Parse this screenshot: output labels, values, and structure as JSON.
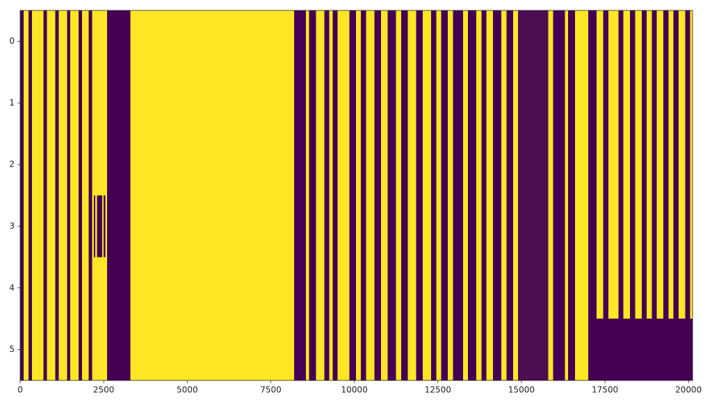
{
  "chart_data": {
    "type": "heatmap",
    "colors": [
      "#440154",
      "#fde725"
    ],
    "vlim": [
      0,
      1
    ],
    "bins": [
      0,
      100,
      250,
      350,
      700,
      800,
      1050,
      1150,
      1400,
      1500,
      1750,
      1850,
      2050,
      2150,
      2200,
      2250,
      2300,
      2450,
      2500,
      2550,
      2600,
      3300,
      8200,
      8550,
      8650,
      8850,
      9100,
      9250,
      9350,
      9500,
      9850,
      10050,
      10200,
      10350,
      10600,
      10800,
      11000,
      11250,
      11400,
      11600,
      11850,
      12050,
      12300,
      12450,
      12600,
      12800,
      12950,
      13250,
      13400,
      13650,
      13800,
      13950,
      14150,
      14400,
      14550,
      14750,
      14900,
      15800,
      15950,
      16300,
      16400,
      16600,
      17000,
      17250,
      17450,
      17600,
      17900,
      18050,
      18250,
      18400,
      18600,
      18750,
      18900,
      19050,
      19250,
      19400,
      19550,
      19700,
      19900,
      20050,
      20120
    ],
    "values": [
      [
        0,
        1,
        0,
        1,
        0,
        1,
        0,
        1,
        0,
        1,
        0,
        1,
        0,
        1,
        1,
        1,
        1,
        1,
        1,
        1,
        0,
        1,
        0,
        1,
        0,
        1,
        0,
        1,
        0,
        1,
        0,
        1,
        0,
        1,
        0,
        1,
        0,
        1,
        0,
        1,
        0,
        1,
        0,
        1,
        0,
        1,
        0,
        1,
        0,
        1,
        0,
        1,
        0,
        1,
        0,
        1,
        0.05,
        1,
        0,
        1,
        0,
        1,
        0,
        1,
        0,
        1,
        0,
        1,
        0,
        1,
        0,
        1,
        0,
        1,
        0,
        1,
        0,
        1,
        0,
        1
      ],
      [
        0,
        1,
        0,
        1,
        0,
        1,
        0,
        1,
        0,
        1,
        0,
        1,
        0,
        1,
        1,
        1,
        1,
        1,
        1,
        1,
        0,
        1,
        0,
        1,
        0,
        1,
        0,
        1,
        0,
        1,
        0,
        1,
        0,
        1,
        0,
        1,
        0,
        1,
        0,
        1,
        0,
        1,
        0,
        1,
        0,
        1,
        0,
        1,
        0,
        1,
        0,
        1,
        0,
        1,
        0,
        1,
        0.05,
        1,
        0,
        1,
        0,
        1,
        0,
        1,
        0,
        1,
        0,
        1,
        0,
        1,
        0,
        1,
        0,
        1,
        0,
        1,
        0,
        1,
        0,
        1
      ],
      [
        0,
        1,
        0,
        1,
        0,
        1,
        0,
        1,
        0,
        1,
        0,
        1,
        0,
        1,
        1,
        1,
        1,
        1,
        1,
        1,
        0,
        1,
        0,
        1,
        0,
        1,
        0,
        1,
        0,
        1,
        0,
        1,
        0,
        1,
        0,
        1,
        0,
        1,
        0,
        1,
        0,
        1,
        0,
        1,
        0,
        1,
        0,
        1,
        0,
        1,
        0,
        1,
        0,
        1,
        0,
        1,
        0.05,
        1,
        0,
        1,
        0,
        1,
        0,
        1,
        0,
        1,
        0,
        1,
        0,
        1,
        0,
        1,
        0,
        1,
        0,
        1,
        0,
        1,
        0,
        1
      ],
      [
        0,
        1,
        0,
        1,
        0,
        1,
        0,
        1,
        0,
        1,
        0,
        1,
        0,
        1,
        0,
        1,
        0,
        1,
        0,
        1,
        0,
        1,
        0,
        1,
        0,
        1,
        0,
        1,
        0,
        1,
        0,
        1,
        0,
        1,
        0,
        1,
        0,
        1,
        0,
        1,
        0,
        1,
        0,
        1,
        0,
        1,
        0,
        1,
        0,
        1,
        0,
        1,
        0,
        1,
        0,
        1,
        0.05,
        1,
        0,
        1,
        0,
        1,
        0,
        1,
        0,
        1,
        0,
        1,
        0,
        1,
        0,
        1,
        0,
        1,
        0,
        1,
        0,
        1,
        0,
        1
      ],
      [
        0,
        1,
        0,
        1,
        0,
        1,
        0,
        1,
        0,
        1,
        0,
        1,
        0,
        1,
        1,
        1,
        1,
        1,
        1,
        1,
        0,
        1,
        0,
        1,
        0,
        1,
        0,
        1,
        0,
        1,
        0,
        1,
        0,
        1,
        0,
        1,
        0,
        1,
        0,
        1,
        0,
        1,
        0,
        1,
        0,
        1,
        0,
        1,
        0,
        1,
        0,
        1,
        0,
        1,
        0,
        1,
        0.05,
        1,
        0,
        1,
        0,
        1,
        0,
        1,
        0,
        1,
        0,
        1,
        0,
        1,
        0,
        1,
        0,
        1,
        0,
        1,
        0,
        1,
        0,
        1
      ],
      [
        0,
        1,
        0,
        1,
        0,
        1,
        0,
        1,
        0,
        1,
        0,
        1,
        0,
        1,
        1,
        1,
        1,
        1,
        1,
        1,
        0,
        1,
        0,
        1,
        0,
        1,
        0,
        1,
        0,
        1,
        0,
        1,
        0,
        1,
        0,
        1,
        0,
        1,
        0,
        1,
        0,
        1,
        0,
        1,
        0,
        1,
        0,
        1,
        0,
        1,
        0,
        1,
        0,
        1,
        0,
        1,
        0.05,
        1,
        0,
        1,
        0,
        1,
        0,
        0,
        0,
        0,
        0,
        0,
        0,
        0,
        0,
        0,
        0,
        0,
        0,
        0,
        0,
        0,
        0,
        0
      ]
    ],
    "xlim": [
      -0.5,
      20120
    ],
    "ylim": [
      5.5,
      -0.5
    ],
    "xticks": [
      0,
      2500,
      5000,
      7500,
      10000,
      12500,
      15000,
      17500,
      20000
    ],
    "yticks": [
      0,
      1,
      2,
      3,
      4,
      5
    ]
  }
}
